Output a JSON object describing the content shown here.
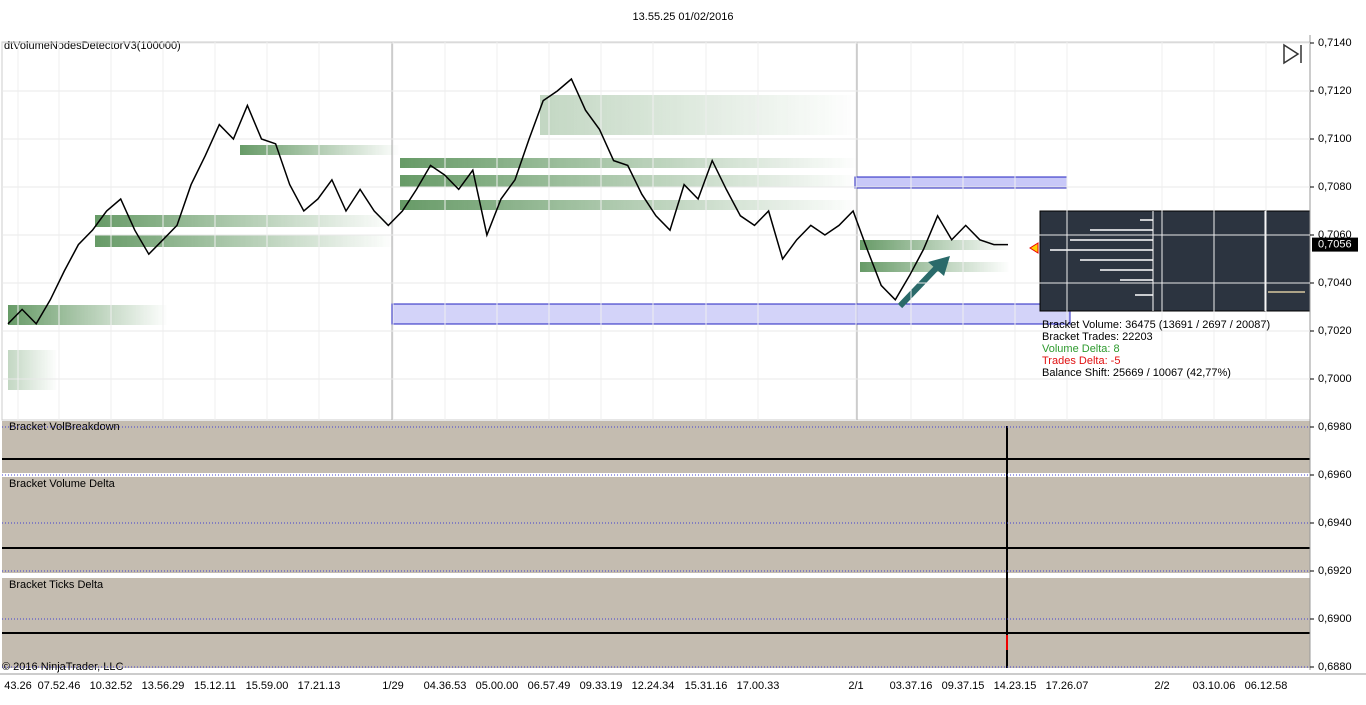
{
  "header": {
    "title": "13.55.25 01/02/2016"
  },
  "chart_data": {
    "type": "line",
    "indicator": "dtVolumeNodesDetectorV3(100000)",
    "color": "#000000",
    "values": [
      0.7023,
      0.7029,
      0.7023,
      0.7033,
      0.7045,
      0.7056,
      0.7062,
      0.707,
      0.7075,
      0.7062,
      0.7052,
      0.7058,
      0.7064,
      0.7081,
      0.7093,
      0.7106,
      0.71,
      0.7114,
      0.71,
      0.7098,
      0.7081,
      0.707,
      0.7075,
      0.7083,
      0.707,
      0.7079,
      0.707,
      0.7064,
      0.707,
      0.7079,
      0.7089,
      0.7085,
      0.7079,
      0.7087,
      0.706,
      0.7075,
      0.7083,
      0.71,
      0.7116,
      0.712,
      0.7125,
      0.7112,
      0.7104,
      0.7091,
      0.7089,
      0.7077,
      0.7068,
      0.7062,
      0.7081,
      0.7075,
      0.7091,
      0.7079,
      0.7068,
      0.7064,
      0.707,
      0.705,
      0.7058,
      0.7064,
      0.706,
      0.7064,
      0.707,
      0.7054,
      0.7039,
      0.7033,
      0.7043,
      0.7054,
      0.7068,
      0.7058,
      0.7064,
      0.7058,
      0.7056,
      0.7056
    ],
    "ylim": [
      0.688,
      0.714
    ],
    "yticks": [
      {
        "value": 0.714,
        "label": "0,7140"
      },
      {
        "value": 0.712,
        "label": "0,7120"
      },
      {
        "value": 0.71,
        "label": "0,7100"
      },
      {
        "value": 0.708,
        "label": "0,7080"
      },
      {
        "value": 0.706,
        "label": "0,7060"
      },
      {
        "value": 0.704,
        "label": "0,7040"
      },
      {
        "value": 0.702,
        "label": "0,7020"
      },
      {
        "value": 0.7,
        "label": "0,7000"
      },
      {
        "value": 0.698,
        "label": "0,6980"
      },
      {
        "value": 0.696,
        "label": "0,6960"
      },
      {
        "value": 0.694,
        "label": "0,6940"
      },
      {
        "value": 0.692,
        "label": "0,6920"
      },
      {
        "value": 0.69,
        "label": "0,6900"
      },
      {
        "value": 0.688,
        "label": "0,6880"
      }
    ],
    "last_price": {
      "value": 0.7056,
      "label": "0,7056"
    },
    "x_labels": [
      "43.26",
      "07.52.46",
      "10.32.52",
      "13.56.29",
      "15.12.11",
      "15.59.00",
      "17.21.13",
      "1/29",
      "04.36.53",
      "05.00.00",
      "06.57.49",
      "09.33.19",
      "12.24.34",
      "15.31.16",
      "17.00.33",
      "2/1",
      "03.37.16",
      "09.37.15",
      "14.23.15",
      "17.26.07",
      "2/2",
      "03.10.06",
      "06.12.58"
    ],
    "panels": [
      "Bracket VolBreakdown",
      "Bracket Volume Delta",
      "Bracket Ticks Delta"
    ],
    "info": [
      {
        "text": "Bracket Volume: 36475 (13691 / 2697 / 20087)",
        "color": "#000000"
      },
      {
        "text": "Bracket Trades: 22203",
        "color": "#000000"
      },
      {
        "text": "Volume Delta: 8",
        "color": "#2e9a2e"
      },
      {
        "text": "Trades Delta: -5",
        "color": "#e01010"
      },
      {
        "text": "Balance Shift: 25669 / 10067 (42,77%)",
        "color": "#000000"
      }
    ],
    "copyright": "© 2016 NinjaTrader, LLC"
  }
}
